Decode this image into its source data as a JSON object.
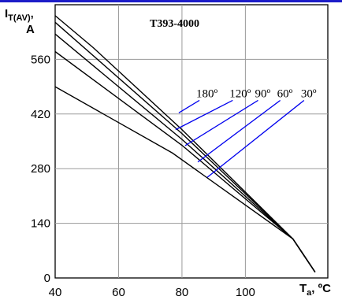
{
  "chart_data": {
    "type": "line",
    "title": "T393-4000",
    "ylabel": {
      "main": "I",
      "sub": "T(AV)",
      "tail": ",",
      "unit": "A"
    },
    "xlabel": {
      "main": "T",
      "sub": "a",
      "tail": ", ºC"
    },
    "xlim": [
      40,
      126
    ],
    "ylim": [
      0,
      700
    ],
    "xticks": [
      40,
      60,
      80,
      100
    ],
    "yticks": [
      0,
      140,
      280,
      420,
      560
    ],
    "grid": true,
    "series": [
      {
        "name": "180º",
        "points": [
          [
            40,
            672
          ],
          [
            52,
            590
          ],
          [
            80,
            380
          ],
          [
            115,
            100
          ],
          [
            122,
            15
          ]
        ]
      },
      {
        "name": "120º",
        "points": [
          [
            40,
            655
          ],
          [
            80,
            370
          ],
          [
            115,
            100
          ],
          [
            122,
            15
          ]
        ]
      },
      {
        "name": "90º",
        "points": [
          [
            40,
            625
          ],
          [
            80,
            355
          ],
          [
            115,
            100
          ],
          [
            122,
            15
          ]
        ]
      },
      {
        "name": "60º",
        "points": [
          [
            40,
            580
          ],
          [
            80,
            340
          ],
          [
            115,
            100
          ],
          [
            122,
            15
          ]
        ]
      },
      {
        "name": "30º",
        "points": [
          [
            40,
            490
          ],
          [
            77,
            320
          ],
          [
            115,
            100
          ],
          [
            122,
            15
          ]
        ]
      }
    ],
    "annotations": [
      {
        "text": "180º",
        "label_at": [
          85.5,
          459
        ],
        "arrow_to": [
          79,
          423
        ]
      },
      {
        "text": "120º",
        "label_at": [
          96,
          459
        ],
        "arrow_to": [
          78,
          380
        ]
      },
      {
        "text": "90º",
        "label_at": [
          104,
          459
        ],
        "arrow_to": [
          81,
          339
        ]
      },
      {
        "text": "60º",
        "label_at": [
          111,
          459
        ],
        "arrow_to": [
          85,
          297
        ]
      },
      {
        "text": "30º",
        "label_at": [
          118.5,
          459
        ],
        "arrow_to": [
          88,
          258
        ]
      }
    ]
  },
  "colors": {
    "line": "#000000",
    "grid": "#9a9a9a",
    "arrow": "#0000ee",
    "header_bar": "#1c1cc8"
  }
}
